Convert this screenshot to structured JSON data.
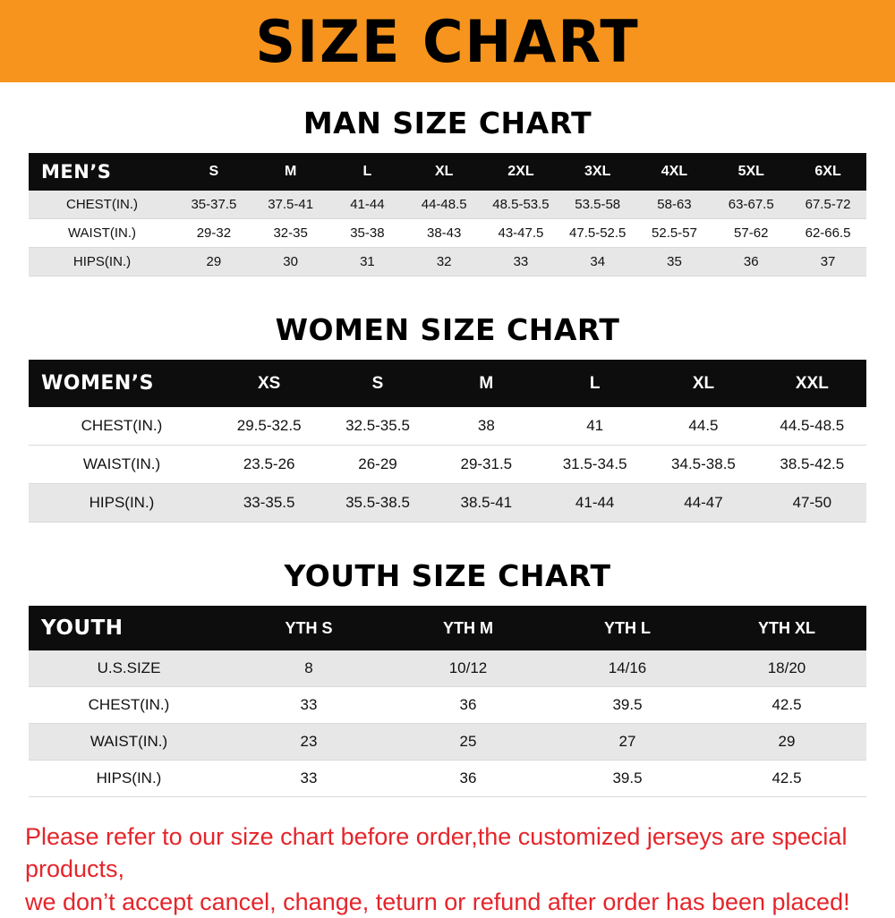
{
  "banner": {
    "title": "SIZE CHART"
  },
  "colors": {
    "banner_bg": "#f7941d",
    "table_header_bg": "#0d0d0d",
    "row_stripe": "#e7e7e7",
    "footer_text": "#e4252b"
  },
  "sections": {
    "men": {
      "heading": "MAN SIZE CHART",
      "table": {
        "header_label": "MEN’S",
        "columns": [
          "S",
          "M",
          "L",
          "XL",
          "2XL",
          "3XL",
          "4XL",
          "5XL",
          "6XL"
        ],
        "rows": [
          {
            "label": "CHEST(IN.)",
            "values": [
              "35-37.5",
              "37.5-41",
              "41-44",
              "44-48.5",
              "48.5-53.5",
              "53.5-58",
              "58-63",
              "63-67.5",
              "67.5-72"
            ]
          },
          {
            "label": "WAIST(IN.)",
            "values": [
              "29-32",
              "32-35",
              "35-38",
              "38-43",
              "43-47.5",
              "47.5-52.5",
              "52.5-57",
              "57-62",
              "62-66.5"
            ]
          },
          {
            "label": "HIPS(IN.)",
            "values": [
              "29",
              "30",
              "31",
              "32",
              "33",
              "34",
              "35",
              "36",
              "37"
            ]
          }
        ]
      }
    },
    "women": {
      "heading": "WOMEN SIZE CHART",
      "table": {
        "header_label": "WOMEN’S",
        "columns": [
          "XS",
          "S",
          "M",
          "L",
          "XL",
          "XXL"
        ],
        "rows": [
          {
            "label": "CHEST(IN.)",
            "values": [
              "29.5-32.5",
              "32.5-35.5",
              "38",
              "41",
              "44.5",
              "44.5-48.5"
            ]
          },
          {
            "label": "WAIST(IN.)",
            "values": [
              "23.5-26",
              "26-29",
              "29-31.5",
              "31.5-34.5",
              "34.5-38.5",
              "38.5-42.5"
            ]
          },
          {
            "label": "HIPS(IN.)",
            "values": [
              "33-35.5",
              "35.5-38.5",
              "38.5-41",
              "41-44",
              "44-47",
              "47-50"
            ]
          }
        ]
      }
    },
    "youth": {
      "heading": "YOUTH SIZE CHART",
      "table": {
        "header_label": "YOUTH",
        "columns": [
          "YTH S",
          "YTH M",
          "YTH L",
          "YTH XL"
        ],
        "rows": [
          {
            "label": "U.S.SIZE",
            "values": [
              "8",
              "10/12",
              "14/16",
              "18/20"
            ]
          },
          {
            "label": "CHEST(IN.)",
            "values": [
              "33",
              "36",
              "39.5",
              "42.5"
            ]
          },
          {
            "label": "WAIST(IN.)",
            "values": [
              "23",
              "25",
              "27",
              "29"
            ]
          },
          {
            "label": "HIPS(IN.)",
            "values": [
              "33",
              "36",
              "39.5",
              "42.5"
            ]
          }
        ]
      }
    }
  },
  "footer": {
    "line1": "Please refer to our size chart before order,the customized jerseys are special products,",
    "line2": "we don’t accept cancel, change, teturn or refund after order has been placed!"
  }
}
